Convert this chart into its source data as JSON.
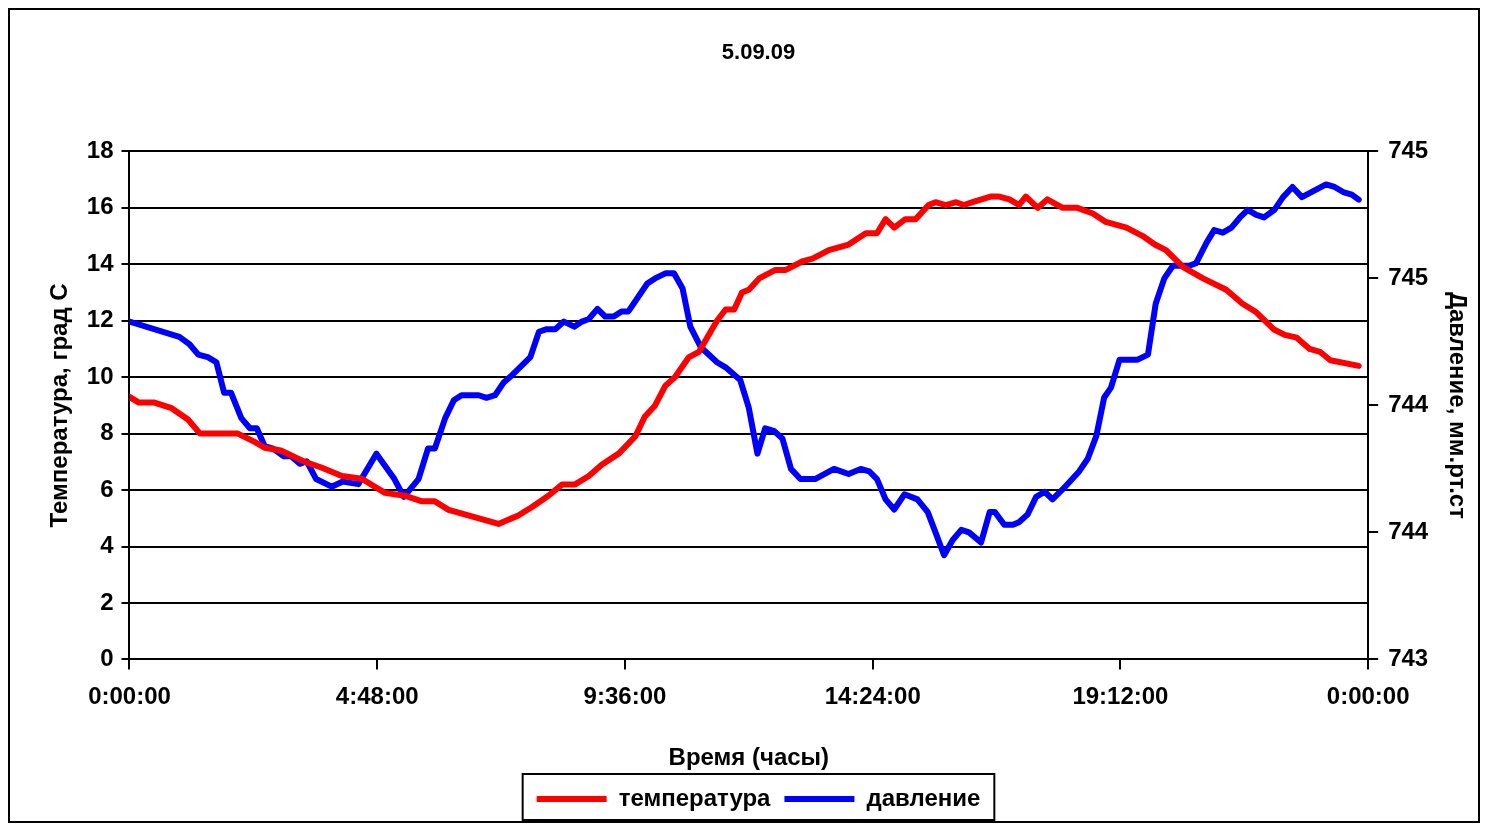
{
  "chart_data": {
    "type": "line",
    "title": "5.09.09",
    "xlabel": "Время (часы)",
    "ylabel": "Температура, град С",
    "y2label": "Давление, мм.рт.ст",
    "xlim": [
      "--09-05T00:00",
      "--09-06T00:00"
    ],
    "xticks": [
      {
        "value": "--09-05T00:00",
        "label": "0:00:00"
      },
      {
        "value": "--09-05T04:48",
        "label": "4:48:00"
      },
      {
        "value": "--09-05T09:36",
        "label": "9:36:00"
      },
      {
        "value": "--09-05T14:24",
        "label": "14:24:00"
      },
      {
        "value": "--09-05T19:12",
        "label": "19:12:00"
      },
      {
        "value": "--09-06T00:00",
        "label": "0:00:00"
      }
    ],
    "ylim": [
      0,
      18
    ],
    "yticks": [
      0,
      2,
      4,
      6,
      8,
      10,
      12,
      14,
      16,
      18
    ],
    "y2lim": [
      743,
      745
    ],
    "y2ticks": [
      {
        "value": 743,
        "label": "743"
      },
      {
        "value": 743.5,
        "label": "744"
      },
      {
        "value": 744,
        "label": "744"
      },
      {
        "value": 744.5,
        "label": "745"
      },
      {
        "value": 745,
        "label": "745"
      }
    ],
    "grid": "y",
    "legend": "bottom",
    "marker": "none",
    "line_style": "solid",
    "series": [
      {
        "name": "температура",
        "color": "#ff0000",
        "x": [
          "--09-05T00:00",
          "--09-05T00:11",
          "--09-05T00:29",
          "--09-05T00:49",
          "--09-05T01:08",
          "--09-05T01:22",
          "--09-05T02:06",
          "--09-05T02:26",
          "--09-05T02:37",
          "--09-05T02:56",
          "--09-05T03:24",
          "--09-05T03:43",
          "--09-05T04:07",
          "--09-05T04:30",
          "--09-05T04:57",
          "--09-05T05:20",
          "--09-05T05:40",
          "--09-05T05:55",
          "--09-05T06:11",
          "--09-05T07:09",
          "--09-05T07:32",
          "--09-05T07:48",
          "--09-05T08:07",
          "--09-05T08:23",
          "--09-05T08:38",
          "--09-05T08:54",
          "--09-05T09:09",
          "--09-05T09:29",
          "--09-05T09:48",
          "--09-05T09:59",
          "--09-05T10:11",
          "--09-05T10:23",
          "--09-05T10:34",
          "--09-05T10:50",
          "--09-05T11:02",
          "--09-05T11:23",
          "--09-05T11:33",
          "--09-05T11:43",
          "--09-05T11:52",
          "--09-05T12:00",
          "--09-05T12:12",
          "--09-05T12:31",
          "--09-05T12:43",
          "--09-05T13:02",
          "--09-05T13:14",
          "--09-05T13:33",
          "--09-05T13:56",
          "--09-05T14:16",
          "--09-05T14:29",
          "--09-05T14:39",
          "--09-05T14:49",
          "--09-05T15:02",
          "--09-05T15:14",
          "--09-05T15:29",
          "--09-05T15:37",
          "--09-05T15:49",
          "--09-05T16:01",
          "--09-05T16:10",
          "--09-05T16:20",
          "--09-05T16:41",
          "--09-05T16:51",
          "--09-05T17:03",
          "--09-05T17:14",
          "--09-05T17:22",
          "--09-05T17:36",
          "--09-05T17:47",
          "--09-05T18:05",
          "--09-05T18:22",
          "--09-05T18:40",
          "--09-05T18:55",
          "--09-05T19:19",
          "--09-05T19:38",
          "--09-05T19:52",
          "--09-05T20:05",
          "--09-05T20:25",
          "--09-05T20:48",
          "--09-05T21:15",
          "--09-05T21:34",
          "--09-05T21:50",
          "--09-05T22:10",
          "--09-05T22:23",
          "--09-05T22:37",
          "--09-05T22:52",
          "--09-05T23:04",
          "--09-05T23:16",
          "--09-05T23:49"
        ],
        "values": [
          9.3,
          9.1,
          9.1,
          8.9,
          8.5,
          8.0,
          8.0,
          7.7,
          7.5,
          7.4,
          7.0,
          6.8,
          6.5,
          6.4,
          5.9,
          5.8,
          5.6,
          5.6,
          5.3,
          4.8,
          5.1,
          5.4,
          5.8,
          6.2,
          6.2,
          6.5,
          6.9,
          7.3,
          7.9,
          8.6,
          9.0,
          9.7,
          10.0,
          10.7,
          10.9,
          12.0,
          12.4,
          12.4,
          13.0,
          13.1,
          13.5,
          13.8,
          13.8,
          14.1,
          14.2,
          14.5,
          14.7,
          15.1,
          15.1,
          15.6,
          15.3,
          15.6,
          15.6,
          16.1,
          16.2,
          16.1,
          16.2,
          16.1,
          16.2,
          16.4,
          16.4,
          16.3,
          16.1,
          16.4,
          16.0,
          16.3,
          16.0,
          16.0,
          15.8,
          15.5,
          15.3,
          15.0,
          14.7,
          14.5,
          13.9,
          13.5,
          13.1,
          12.6,
          12.3,
          11.7,
          11.5,
          11.4,
          11.0,
          10.9,
          10.6,
          10.4
        ]
      },
      {
        "name": "давление",
        "color": "#0000ff",
        "axis": "y2",
        "x": [
          "--09-05T00:00",
          "--09-05T00:58",
          "--09-05T01:10",
          "--09-05T01:20",
          "--09-05T01:31",
          "--09-05T01:41",
          "--09-05T01:50",
          "--09-05T01:58",
          "--09-05T02:10",
          "--09-05T02:20",
          "--09-05T02:28",
          "--09-05T02:37",
          "--09-05T02:47",
          "--09-05T02:59",
          "--09-05T03:08",
          "--09-05T03:18",
          "--09-05T03:26",
          "--09-05T03:37",
          "--09-05T03:55",
          "--09-05T04:08",
          "--09-05T04:26",
          "--09-05T04:47",
          "--09-05T05:08",
          "--09-05T05:19",
          "--09-05T05:36",
          "--09-05T05:47",
          "--09-05T05:55",
          "--09-05T06:07",
          "--09-05T06:17",
          "--09-05T06:26",
          "--09-05T06:46",
          "--09-05T06:55",
          "--09-05T07:05",
          "--09-05T07:15",
          "--09-05T07:25",
          "--09-05T07:46",
          "--09-05T07:56",
          "--09-05T08:05",
          "--09-05T08:15",
          "--09-05T08:25",
          "--09-05T08:37",
          "--09-05T08:46",
          "--09-05T08:54",
          "--09-05T09:04",
          "--09-05T09:13",
          "--09-05T09:23",
          "--09-05T09:32",
          "--09-05T09:40",
          "--09-05T10:02",
          "--09-05T10:11",
          "--09-05T10:23",
          "--09-05T10:33",
          "--09-05T10:43",
          "--09-05T10:52",
          "--09-05T11:04",
          "--09-05T11:23",
          "--09-05T11:33",
          "--09-05T11:50",
          "--09-05T12:00",
          "--09-05T12:10",
          "--09-05T12:19",
          "--09-05T12:29",
          "--09-05T12:39",
          "--09-05T12:49",
          "--09-05T13:00",
          "--09-05T13:17",
          "--09-05T13:39",
          "--09-05T13:56",
          "--09-05T14:10",
          "--09-05T14:20",
          "--09-05T14:29",
          "--09-05T14:39",
          "--09-05T14:49",
          "--09-05T15:01",
          "--09-05T15:16",
          "--09-05T15:28",
          "--09-05T15:37",
          "--09-05T15:47",
          "--09-05T15:57",
          "--09-05T16:07",
          "--09-05T16:16",
          "--09-05T16:30",
          "--09-05T16:40",
          "--09-05T16:46",
          "--09-05T16:57",
          "--09-05T17:07",
          "--09-05T17:14",
          "--09-05T17:24",
          "--09-05T17:34",
          "--09-05T17:44",
          "--09-05T17:53",
          "--09-05T18:05",
          "--09-05T18:24",
          "--09-05T18:34",
          "--09-05T18:44",
          "--09-05T18:53",
          "--09-05T19:01",
          "--09-05T19:11",
          "--09-05T19:32",
          "--09-05T19:44",
          "--09-05T19:53",
          "--09-05T20:03",
          "--09-05T20:13",
          "--09-05T20:32",
          "--09-05T20:40",
          "--09-05T20:52",
          "--09-05T21:01",
          "--09-05T21:11",
          "--09-05T21:21",
          "--09-05T21:31",
          "--09-05T21:40",
          "--09-05T21:50",
          "--09-05T21:59",
          "--09-05T22:11",
          "--09-05T22:21",
          "--09-05T22:32",
          "--09-05T22:43",
          "--09-05T22:54",
          "--09-05T23:11",
          "--09-05T23:21",
          "--09-05T23:31",
          "--09-05T23:41",
          "--09-05T23:49"
        ],
        "values": [
          744.33,
          744.27,
          744.24,
          744.2,
          744.19,
          744.17,
          744.05,
          744.05,
          743.95,
          743.91,
          743.91,
          743.84,
          743.83,
          743.8,
          743.8,
          743.77,
          743.78,
          743.71,
          743.68,
          743.7,
          743.69,
          743.81,
          743.71,
          743.64,
          743.71,
          743.83,
          743.83,
          743.95,
          744.02,
          744.04,
          744.04,
          744.03,
          744.04,
          744.09,
          744.12,
          744.19,
          744.29,
          744.3,
          744.3,
          744.33,
          744.31,
          744.33,
          744.34,
          744.38,
          744.35,
          744.35,
          744.37,
          744.37,
          744.48,
          744.5,
          744.52,
          744.52,
          744.46,
          744.31,
          744.23,
          744.17,
          744.15,
          744.1,
          743.99,
          743.81,
          743.91,
          743.9,
          743.87,
          743.75,
          743.71,
          743.71,
          743.75,
          743.73,
          743.75,
          743.74,
          743.71,
          743.63,
          743.59,
          743.65,
          743.63,
          743.58,
          743.5,
          743.41,
          743.47,
          743.51,
          743.5,
          743.46,
          743.58,
          743.58,
          743.53,
          743.53,
          743.54,
          743.57,
          743.64,
          743.66,
          743.63,
          743.67,
          743.74,
          743.79,
          743.88,
          744.03,
          744.07,
          744.18,
          744.18,
          744.2,
          744.4,
          744.5,
          744.55,
          744.55,
          744.56,
          744.64,
          744.69,
          744.68,
          744.7,
          744.74,
          744.77,
          744.75,
          744.74,
          744.77,
          744.82,
          744.86,
          744.82,
          744.84,
          744.87,
          744.86,
          744.84,
          744.83,
          744.81
        ]
      }
    ]
  }
}
